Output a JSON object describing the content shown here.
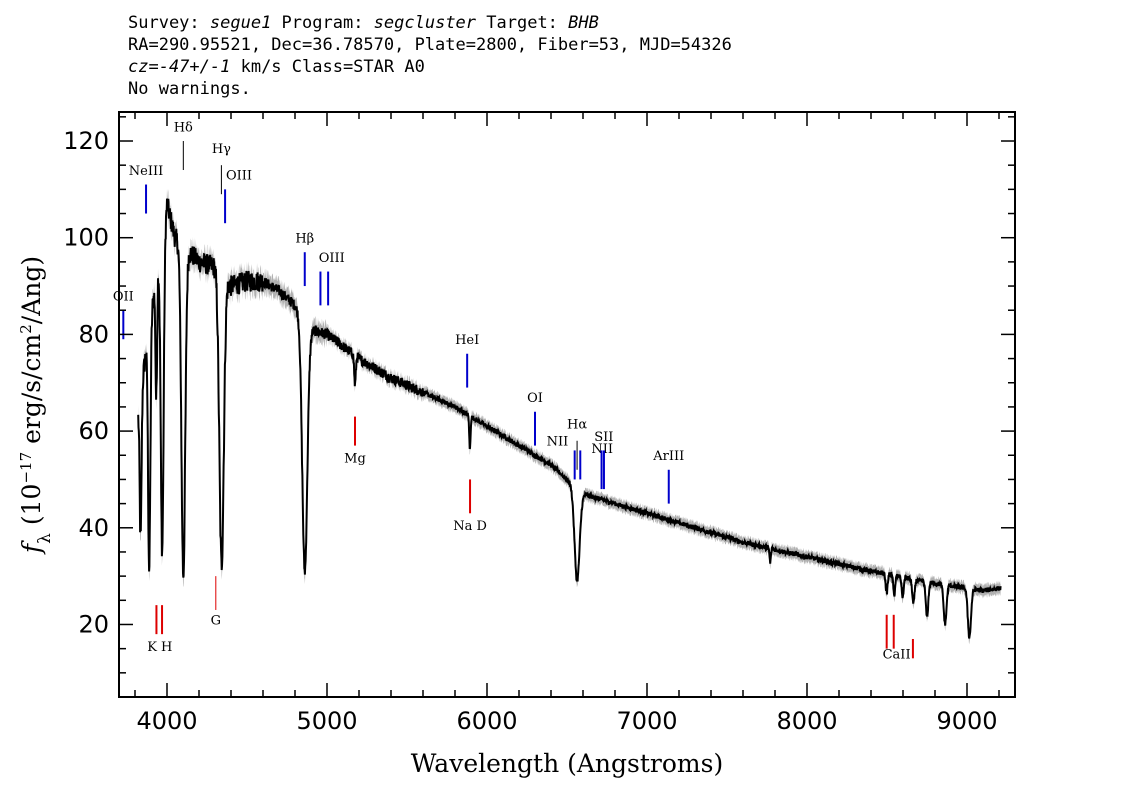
{
  "header": {
    "line1": {
      "survey_label": "Survey: ",
      "survey": "segue1",
      "program_label": " Program: ",
      "program": "segcluster",
      "target_label": " Target: ",
      "target": "BHB"
    },
    "line2": "RA=290.95521, Dec=36.78570, Plate=2800, Fiber=53, MJD=54326",
    "line3": {
      "cz": "cz=-47+/-1",
      "rest": " km/s Class=STAR A0"
    },
    "line4": "No warnings."
  },
  "chart_data": {
    "type": "line",
    "xlabel": "Wavelength (Angstroms)",
    "ylabel": "f_λ (10^-17 erg/s/cm^2/Ang)",
    "ylabel_parts": {
      "f": "f",
      "sub": "λ",
      "a": " (10",
      "exp": "−17",
      "b": " erg/s/cm",
      "exp2": "2",
      "c": "/Ang)"
    },
    "xlim": [
      3700,
      9300
    ],
    "ylim": [
      5,
      126
    ],
    "x_ticks": [
      4000,
      5000,
      6000,
      7000,
      8000,
      9000
    ],
    "x_tick_labels": [
      "4000",
      "5000",
      "6000",
      "7000",
      "8000",
      "9000"
    ],
    "y_ticks": [
      20,
      40,
      60,
      80,
      100,
      120
    ],
    "y_tick_labels": [
      "20",
      "40",
      "60",
      "80",
      "100",
      "120"
    ],
    "continuum_points": [
      [
        3820,
        64
      ],
      [
        3900,
        84
      ],
      [
        4000,
        107
      ],
      [
        4050,
        100
      ],
      [
        4200,
        95
      ],
      [
        4300,
        94
      ],
      [
        4400,
        90
      ],
      [
        4500,
        91
      ],
      [
        4600,
        91
      ],
      [
        4700,
        89
      ],
      [
        4800,
        86
      ],
      [
        4900,
        81
      ],
      [
        5000,
        80
      ],
      [
        5200,
        75
      ],
      [
        5400,
        71
      ],
      [
        5600,
        68
      ],
      [
        5800,
        65
      ],
      [
        6000,
        61
      ],
      [
        6200,
        57
      ],
      [
        6400,
        53
      ],
      [
        6600,
        47
      ],
      [
        6800,
        45
      ],
      [
        7000,
        43
      ],
      [
        7200,
        41
      ],
      [
        7400,
        39
      ],
      [
        7600,
        37
      ],
      [
        7800,
        35.5
      ],
      [
        8000,
        34
      ],
      [
        8200,
        32.5
      ],
      [
        8400,
        31
      ],
      [
        8500,
        30.5
      ],
      [
        8700,
        29
      ],
      [
        8900,
        28
      ],
      [
        9100,
        27
      ],
      [
        9200,
        27.5
      ]
    ],
    "absorption_lines": [
      {
        "x": 3835,
        "depth": 30,
        "width": 6
      },
      {
        "x": 3889,
        "depth": 50,
        "width": 7
      },
      {
        "x": 3933,
        "depth": 25,
        "width": 5
      },
      {
        "x": 3970,
        "depth": 65,
        "width": 9
      },
      {
        "x": 4102,
        "depth": 68,
        "width": 12
      },
      {
        "x": 4341,
        "depth": 60,
        "width": 14
      },
      {
        "x": 4861,
        "depth": 52,
        "width": 16
      },
      {
        "x": 5175,
        "depth": 6,
        "width": 5
      },
      {
        "x": 5893,
        "depth": 7,
        "width": 4
      },
      {
        "x": 6563,
        "depth": 19,
        "width": 16
      },
      {
        "x": 7770,
        "depth": 3,
        "width": 4
      },
      {
        "x": 8498,
        "depth": 4,
        "width": 6
      },
      {
        "x": 8545,
        "depth": 4,
        "width": 6
      },
      {
        "x": 8598,
        "depth": 4,
        "width": 6
      },
      {
        "x": 8665,
        "depth": 5,
        "width": 7
      },
      {
        "x": 8750,
        "depth": 7,
        "width": 8
      },
      {
        "x": 8863,
        "depth": 8,
        "width": 9
      },
      {
        "x": 9015,
        "depth": 10,
        "width": 10
      }
    ],
    "emission_markers": [
      {
        "label": "OII",
        "x": 3727,
        "y0": 79,
        "y1": 85,
        "lx": 3727,
        "ly": 87
      },
      {
        "label": "NeIII",
        "x": 3869,
        "y0": 105,
        "y1": 111,
        "lx": 3869,
        "ly": 113
      },
      {
        "label": "Hδ",
        "x": 4102,
        "y0": 114,
        "y1": 120,
        "lx": 4102,
        "ly": 122,
        "color": "#000000"
      },
      {
        "label": "Hγ",
        "x": 4340,
        "y0": 109,
        "y1": 115,
        "lx": 4340,
        "ly": 117.5,
        "color": "#000000"
      },
      {
        "label": "OIII",
        "x": 4363,
        "y0": 103,
        "y1": 110,
        "lx": 4450,
        "ly": 112
      },
      {
        "label": "Hβ",
        "x": 4861,
        "y0": 90,
        "y1": 97,
        "lx": 4861,
        "ly": 99
      },
      {
        "label": "OIII",
        "x": 4959,
        "y0": 86,
        "y1": 93,
        "lx": 5030,
        "ly": 95
      },
      {
        "label": "OIII",
        "x": 5007,
        "y0": 86,
        "y1": 93,
        "lx": null,
        "ly": null
      },
      {
        "label": "HeI",
        "x": 5876,
        "y0": 69,
        "y1": 76,
        "lx": 5876,
        "ly": 78
      },
      {
        "label": "OI",
        "x": 6300,
        "y0": 57,
        "y1": 64,
        "lx": 6300,
        "ly": 66
      },
      {
        "label": "NII",
        "x": 6548,
        "y0": 50,
        "y1": 56,
        "lx": 6440,
        "ly": 57
      },
      {
        "label": "Hα",
        "x": 6563,
        "y0": 52,
        "y1": 58,
        "lx": 6563,
        "ly": 60.5,
        "color": "#000000"
      },
      {
        "label": "NII",
        "x": 6583,
        "y0": 50,
        "y1": 56,
        "lx": 6720,
        "ly": 55.5
      },
      {
        "label": "SII",
        "x": 6716,
        "y0": 48,
        "y1": 56,
        "lx": 6730,
        "ly": 58
      },
      {
        "label": "SII",
        "x": 6731,
        "y0": 48,
        "y1": 56,
        "lx": null,
        "ly": null
      },
      {
        "label": "ArIII",
        "x": 7136,
        "y0": 45,
        "y1": 52,
        "lx": 7136,
        "ly": 54
      }
    ],
    "absorption_markers": [
      {
        "label": "K",
        "x": 3934,
        "y0": 18,
        "y1": 24
      },
      {
        "label": "H",
        "x": 3969,
        "y0": 18,
        "y1": 24
      },
      {
        "label": "G",
        "x": 4305,
        "y0": 23,
        "y1": 30,
        "lx": 4305,
        "ly": 20
      },
      {
        "label": "Mg",
        "x": 5175,
        "y0": 57,
        "y1": 63,
        "lx": 5175,
        "ly": 53.5
      },
      {
        "label": "Na D",
        "x": 5894,
        "y0": 43,
        "y1": 50,
        "lx": 5894,
        "ly": 39.5
      },
      {
        "label": "CaII",
        "x": 8498,
        "y0": 15,
        "y1": 22
      },
      {
        "label": "CaII",
        "x": 8542,
        "y0": 15,
        "y1": 22
      },
      {
        "label": "CaII",
        "x": 8662,
        "y0": 13,
        "y1": 17
      }
    ],
    "kh_label": "K H",
    "kh_label_pos": [
      3955,
      14.5
    ],
    "caii_label": "CaII",
    "caii_label_pos": [
      8560,
      13
    ],
    "colors": {
      "spectrum": "#000000",
      "error_band": "#b0b0b0",
      "emission": "#0000cc",
      "absorption": "#dd0000",
      "axes": "#000000"
    }
  }
}
